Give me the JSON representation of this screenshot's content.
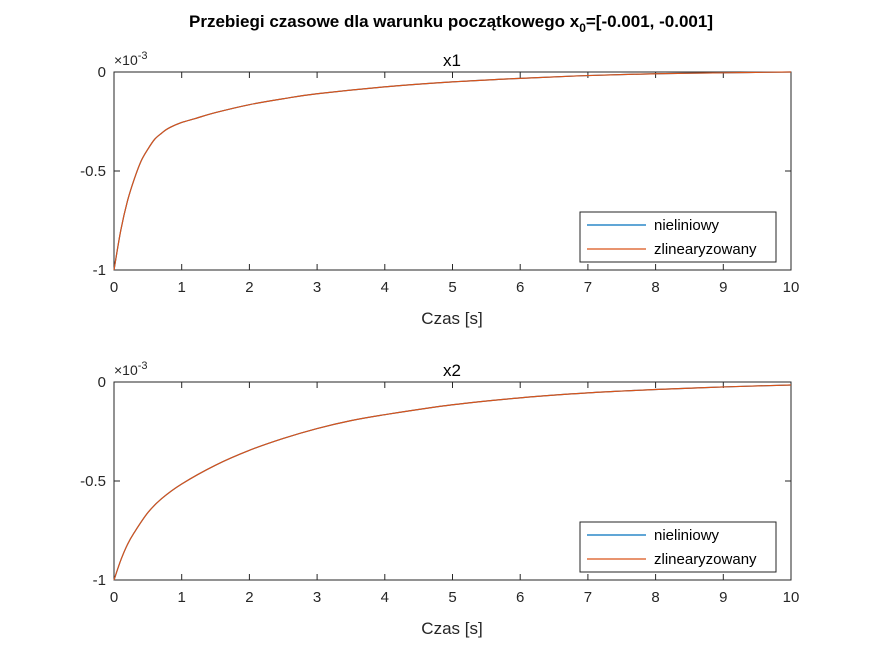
{
  "figure": {
    "title_main": "Przebiegi czasowe dla warunku początkowego x",
    "title_sub": "0",
    "title_tail": "=[-0.001, -0.001]"
  },
  "colors": {
    "nieliniowy": "#0072BD",
    "zlinearyzowany": "#D95319",
    "axes": "#262626"
  },
  "chart_data": [
    {
      "type": "line",
      "title": "x1",
      "xlabel": "Czas [s]",
      "ylabel": "",
      "xlim": [
        0,
        10
      ],
      "ylim": [
        -1,
        0
      ],
      "exponent_label": "×10",
      "exponent_power": "-3",
      "x_ticks": [
        "0",
        "1",
        "2",
        "3",
        "4",
        "5",
        "6",
        "7",
        "8",
        "9",
        "10"
      ],
      "y_ticks": [
        "-1",
        "-0.5",
        "0"
      ],
      "legend": {
        "position": "bottom-right",
        "entries": [
          "nieliniowy",
          "zlinearyzowany"
        ]
      },
      "x": [
        0,
        0.1,
        0.2,
        0.3,
        0.4,
        0.5,
        0.6,
        0.7,
        0.8,
        1.0,
        1.2,
        1.5,
        2,
        2.5,
        3,
        4,
        5,
        6,
        7,
        8,
        9,
        10
      ],
      "series": [
        {
          "name": "nieliniowy",
          "values": [
            -1.0,
            -0.8,
            -0.65,
            -0.54,
            -0.45,
            -0.39,
            -0.34,
            -0.31,
            -0.285,
            -0.255,
            -0.235,
            -0.205,
            -0.165,
            -0.135,
            -0.11,
            -0.075,
            -0.05,
            -0.032,
            -0.018,
            -0.009,
            -0.004,
            0.0
          ]
        },
        {
          "name": "zlinearyzowany",
          "values": [
            -1.0,
            -0.8,
            -0.65,
            -0.54,
            -0.45,
            -0.39,
            -0.34,
            -0.31,
            -0.285,
            -0.255,
            -0.235,
            -0.205,
            -0.165,
            -0.135,
            -0.11,
            -0.075,
            -0.05,
            -0.032,
            -0.018,
            -0.009,
            -0.004,
            0.0
          ]
        }
      ]
    },
    {
      "type": "line",
      "title": "x2",
      "xlabel": "Czas [s]",
      "ylabel": "",
      "xlim": [
        0,
        10
      ],
      "ylim": [
        -1,
        0
      ],
      "exponent_label": "×10",
      "exponent_power": "-3",
      "x_ticks": [
        "0",
        "1",
        "2",
        "3",
        "4",
        "5",
        "6",
        "7",
        "8",
        "9",
        "10"
      ],
      "y_ticks": [
        "-1",
        "-0.5",
        "0"
      ],
      "legend": {
        "position": "bottom-right",
        "entries": [
          "nieliniowy",
          "zlinearyzowany"
        ]
      },
      "x": [
        0,
        0.1,
        0.2,
        0.3,
        0.5,
        0.7,
        1.0,
        1.5,
        2,
        2.5,
        3,
        3.5,
        4,
        5,
        6,
        7,
        8,
        9,
        10
      ],
      "series": [
        {
          "name": "nieliniowy",
          "values": [
            -1.0,
            -0.9,
            -0.82,
            -0.76,
            -0.66,
            -0.59,
            -0.515,
            -0.42,
            -0.345,
            -0.285,
            -0.235,
            -0.195,
            -0.165,
            -0.115,
            -0.08,
            -0.055,
            -0.038,
            -0.025,
            -0.015
          ]
        },
        {
          "name": "zlinearyzowany",
          "values": [
            -1.0,
            -0.9,
            -0.82,
            -0.76,
            -0.66,
            -0.59,
            -0.515,
            -0.42,
            -0.345,
            -0.285,
            -0.235,
            -0.195,
            -0.165,
            -0.115,
            -0.08,
            -0.055,
            -0.038,
            -0.025,
            -0.015
          ]
        }
      ]
    }
  ]
}
